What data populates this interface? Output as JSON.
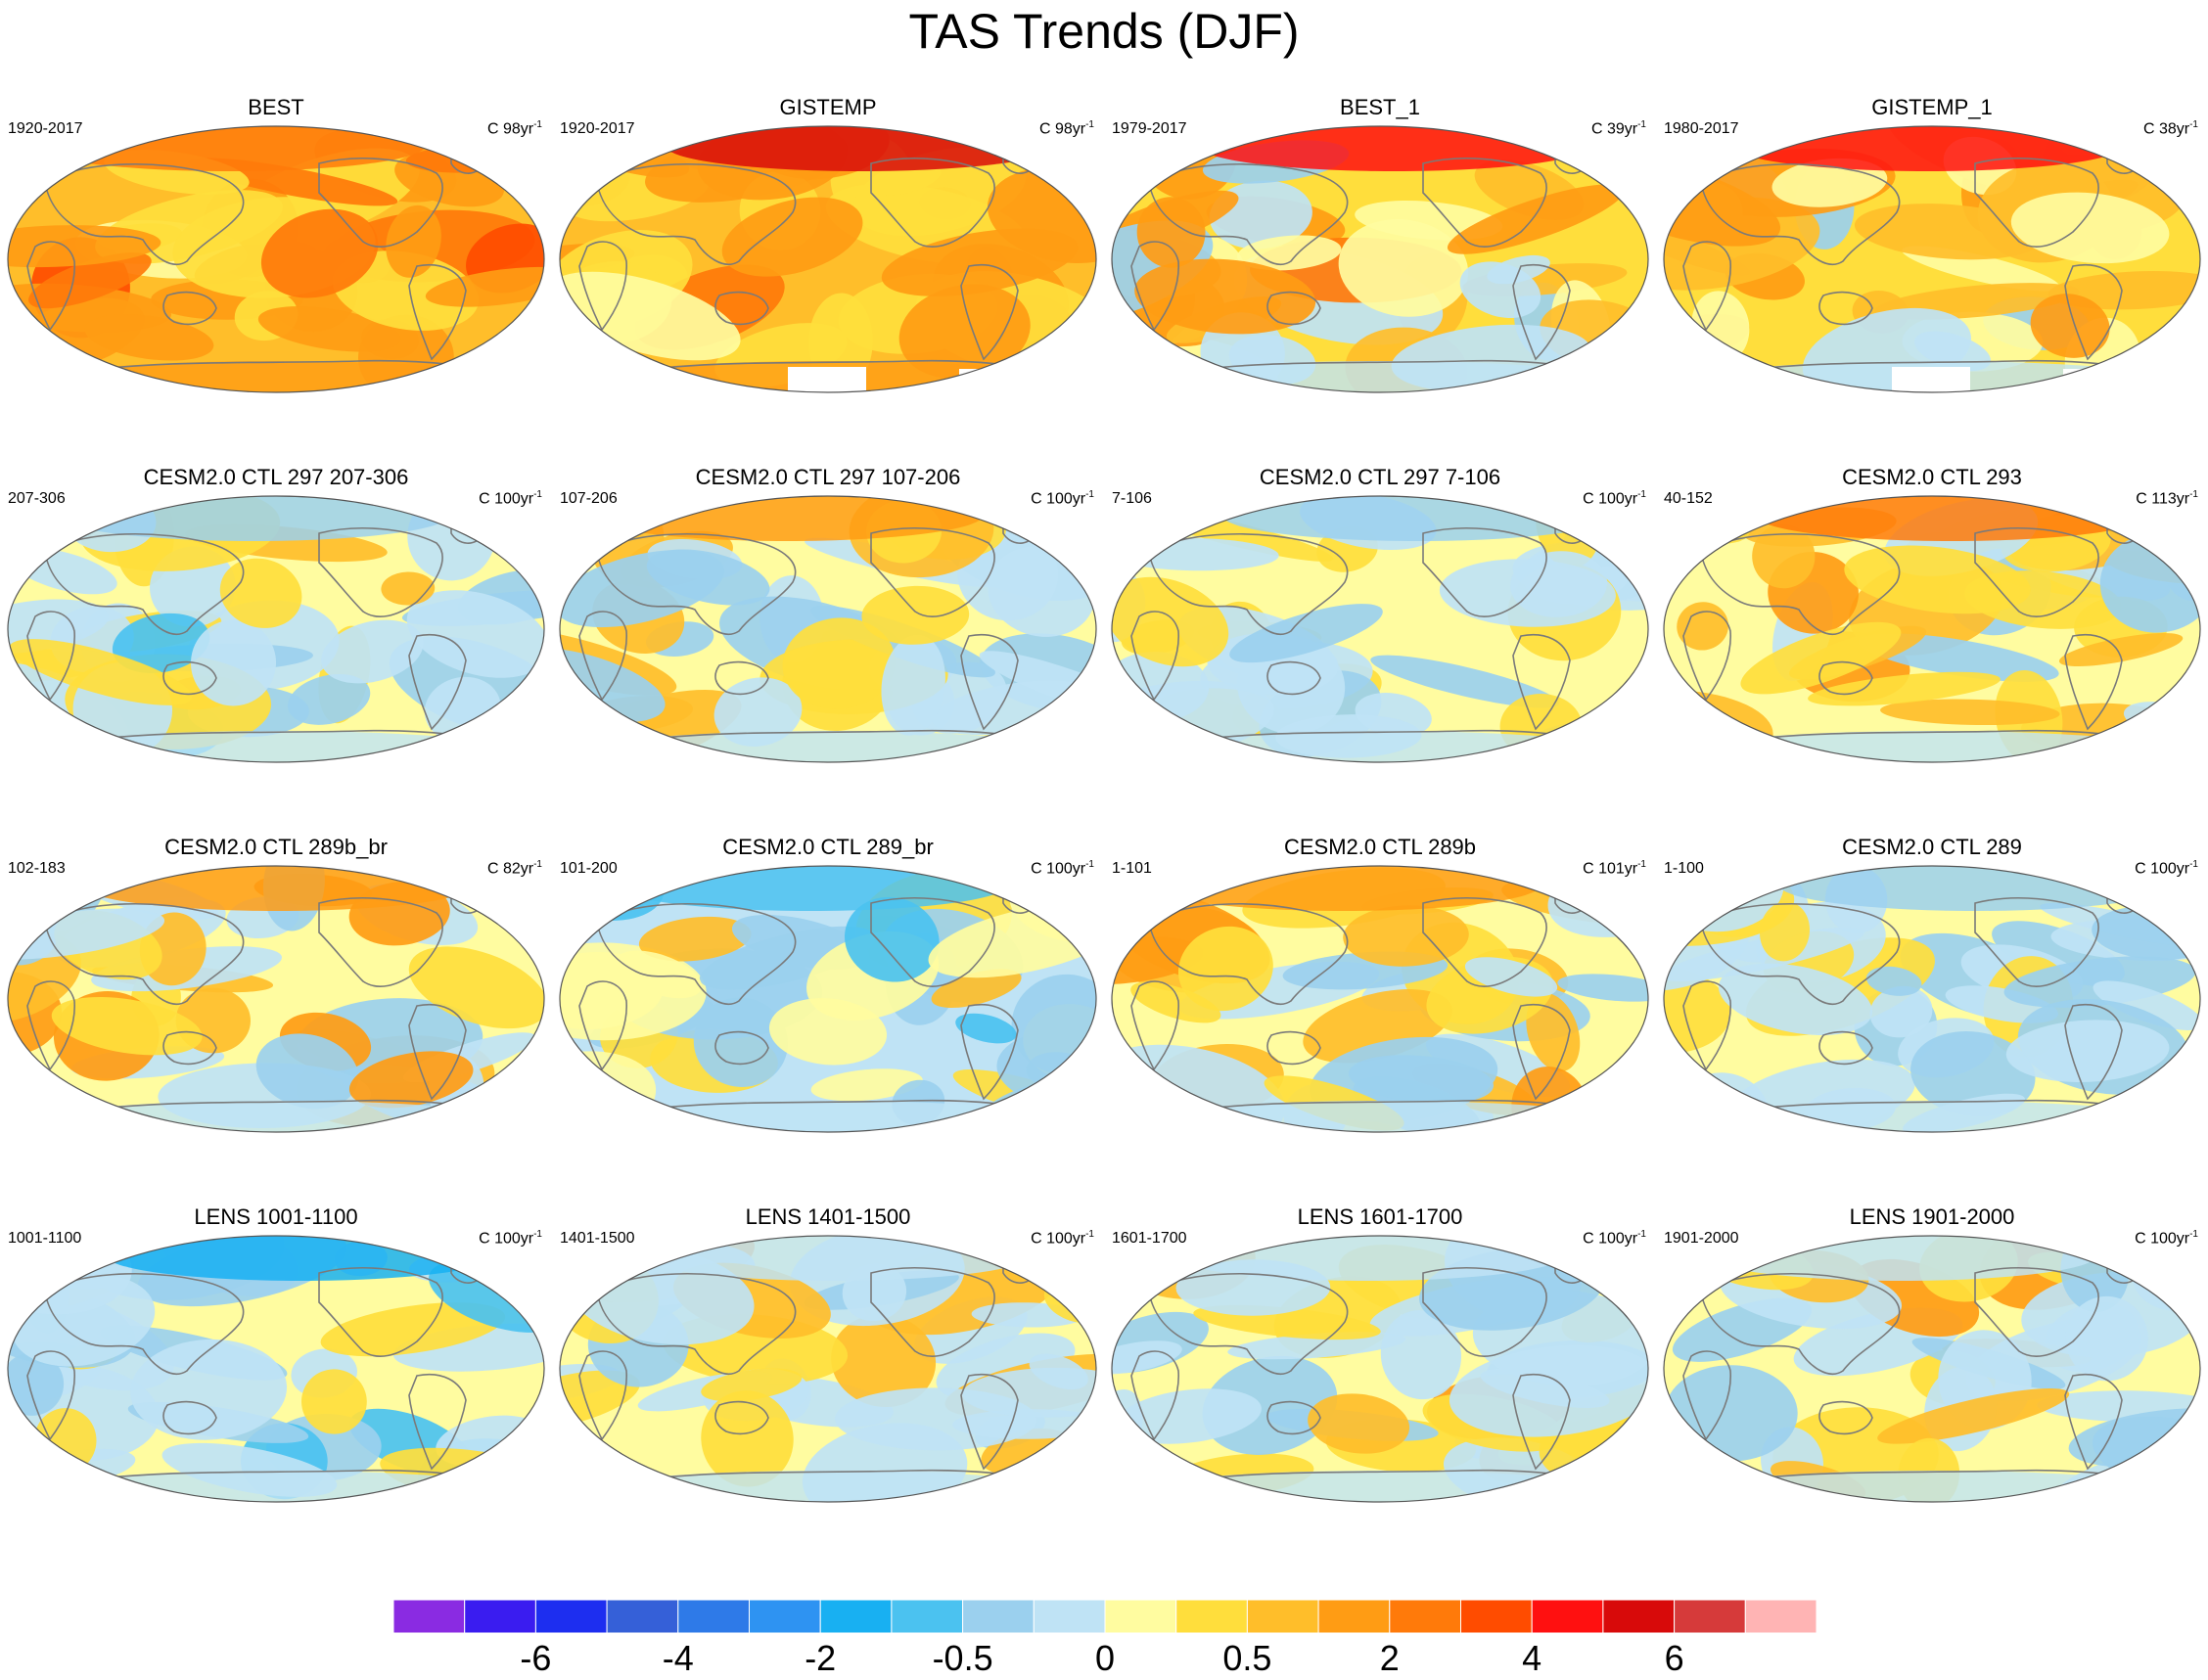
{
  "title": "TAS Trends (DJF)",
  "chart_data": {
    "type": "heatmap",
    "title": "TAS Trends (DJF)",
    "variable": "TAS",
    "season": "DJF",
    "panels": [
      {
        "title": "BEST",
        "period": "1920-2017",
        "units": "C 98yr",
        "units_exp": "-1",
        "pattern": "obs-warm"
      },
      {
        "title": "GISTEMP",
        "period": "1920-2017",
        "units": "C 98yr",
        "units_exp": "-1",
        "pattern": "obs-warm-gaps"
      },
      {
        "title": "BEST_1",
        "period": "1979-2017",
        "units": "C 39yr",
        "units_exp": "-1",
        "pattern": "obs-recent"
      },
      {
        "title": "GISTEMP_1",
        "period": "1980-2017",
        "units": "C 38yr",
        "units_exp": "-1",
        "pattern": "obs-recent-gaps"
      },
      {
        "title": "CESM2.0 CTL 297 207-306",
        "period": "207-306",
        "units": "C 100yr",
        "units_exp": "-1",
        "pattern": "ctl-cool"
      },
      {
        "title": "CESM2.0 CTL 297 107-206",
        "period": "107-206",
        "units": "C 100yr",
        "units_exp": "-1",
        "pattern": "ctl-mixed-warm"
      },
      {
        "title": "CESM2.0 CTL 297 7-106",
        "period": "7-106",
        "units": "C 100yr",
        "units_exp": "-1",
        "pattern": "ctl-cool"
      },
      {
        "title": "CESM2.0 CTL 293",
        "period": "40-152",
        "units": "C 113yr",
        "units_exp": "-1",
        "pattern": "ctl-warm"
      },
      {
        "title": "CESM2.0 CTL 289b_br",
        "period": "102-183",
        "units": "C 82yr",
        "units_exp": "-1",
        "pattern": "ctl-mixed-warm"
      },
      {
        "title": "CESM2.0 CTL 289_br",
        "period": "101-200",
        "units": "C 100yr",
        "units_exp": "-1",
        "pattern": "ctl-cool-strong"
      },
      {
        "title": "CESM2.0 CTL 289b",
        "period": "1-101",
        "units": "C 101yr",
        "units_exp": "-1",
        "pattern": "ctl-mixed-warm"
      },
      {
        "title": "CESM2.0 CTL 289",
        "period": "1-100",
        "units": "C 100yr",
        "units_exp": "-1",
        "pattern": "ctl-cool"
      },
      {
        "title": "LENS 1001-1100",
        "period": "1001-1100",
        "units": "C 100yr",
        "units_exp": "-1",
        "pattern": "lens-cool"
      },
      {
        "title": "LENS 1401-1500",
        "period": "1401-1500",
        "units": "C 100yr",
        "units_exp": "-1",
        "pattern": "lens-mixed"
      },
      {
        "title": "LENS 1601-1700",
        "period": "1601-1700",
        "units": "C 100yr",
        "units_exp": "-1",
        "pattern": "lens-mixed"
      },
      {
        "title": "LENS 1901-2000",
        "period": "1901-2000",
        "units": "C 100yr",
        "units_exp": "-1",
        "pattern": "lens-mixed"
      }
    ],
    "colorbar": {
      "colors": [
        "#8a2be2",
        "#3a1cf0",
        "#1d2ef0",
        "#3560d8",
        "#2e7ae8",
        "#2e93f2",
        "#18b0f2",
        "#4bc2f0",
        "#9bd0ee",
        "#bfe3f5",
        "#fffca0",
        "#ffde3c",
        "#ffbe2a",
        "#ff9c14",
        "#ff7a0a",
        "#ff4c00",
        "#ff1010",
        "#d80a0a",
        "#d63a3a",
        "#ffb4b4"
      ],
      "labels": [
        "-6",
        "-4",
        "-2",
        "-0.5",
        "0",
        "0.5",
        "2",
        "4",
        "6"
      ],
      "label_boundaries": [
        2,
        4,
        6,
        8,
        10,
        12,
        14,
        16,
        18
      ]
    }
  }
}
